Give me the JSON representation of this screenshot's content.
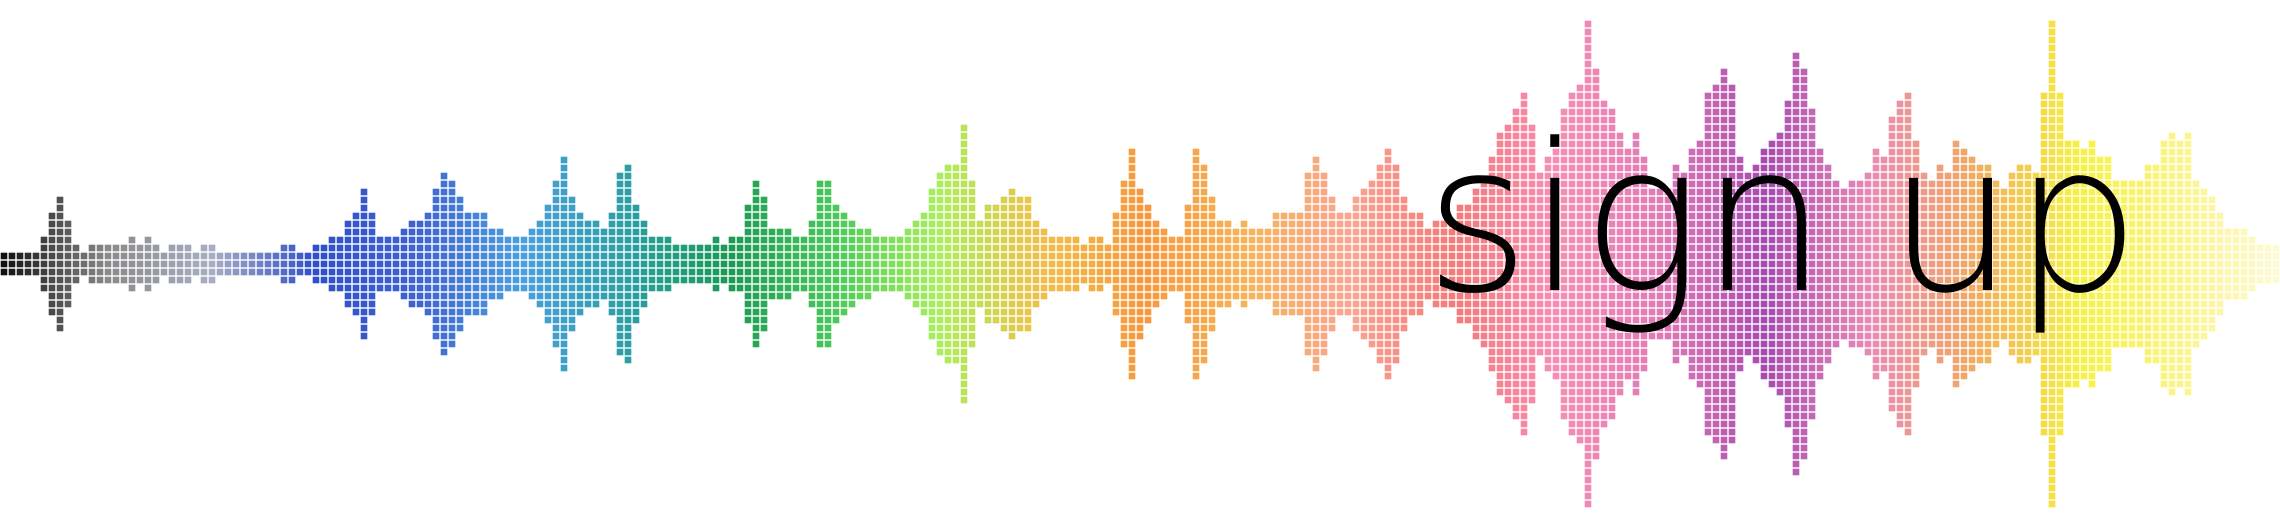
{
  "banner": {
    "cta_text": "sign up"
  },
  "waveform": {
    "icon": "audio-waveform-pixel-graphic",
    "gradient_colors": [
      "#111111",
      "#8a8a8a",
      "#a9aec4",
      "#2f4fc9",
      "#3f63d2",
      "#4aa0dd",
      "#2aa0a6",
      "#1a9a55",
      "#49c75a",
      "#a8f05a",
      "#f0c04a",
      "#f59a3c",
      "#f5b45a",
      "#f9a592",
      "#f47a7a",
      "#f48fb5",
      "#e07ab7",
      "#a54bb0",
      "#e98ab8",
      "#f0aa60",
      "#f7f23a",
      "#fbf48a",
      "#fdfbd8"
    ]
  }
}
